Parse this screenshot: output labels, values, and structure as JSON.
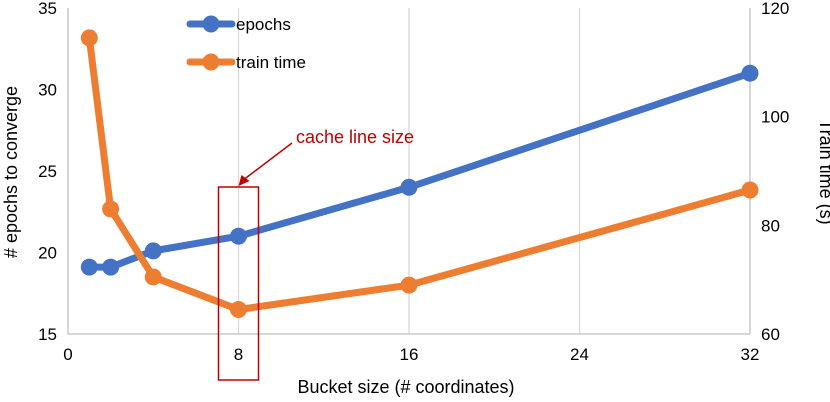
{
  "chart_data": {
    "type": "line",
    "xlabel": "Bucket size (# coordinates)",
    "ylabel": "# epochs to converge",
    "y2label": "Train time (s)",
    "xlim": [
      0,
      32
    ],
    "ylim": [
      15,
      35
    ],
    "y2lim": [
      60,
      120
    ],
    "xticks": [
      "0",
      "8",
      "16",
      "24",
      "32"
    ],
    "yticks": [
      "15",
      "20",
      "25",
      "30",
      "35"
    ],
    "y2ticks": [
      "60",
      "80",
      "100",
      "120"
    ],
    "grid": "vertical",
    "legend_position": "top-left",
    "series": [
      {
        "name": "epochs",
        "axis": "left",
        "color": "#4472C4",
        "x": [
          1,
          2,
          4,
          8,
          16,
          32
        ],
        "y": [
          19.1,
          19.1,
          20.1,
          21.0,
          24.0,
          31.0
        ]
      },
      {
        "name": "train time",
        "axis": "right",
        "color": "#ED7D31",
        "x": [
          1,
          2,
          4,
          8,
          16,
          32
        ],
        "y": [
          114.5,
          83.0,
          70.5,
          64.5,
          69.0,
          86.5
        ]
      }
    ],
    "annotation": {
      "text": "cache line  size",
      "color": "#C00000",
      "x": 8
    }
  }
}
